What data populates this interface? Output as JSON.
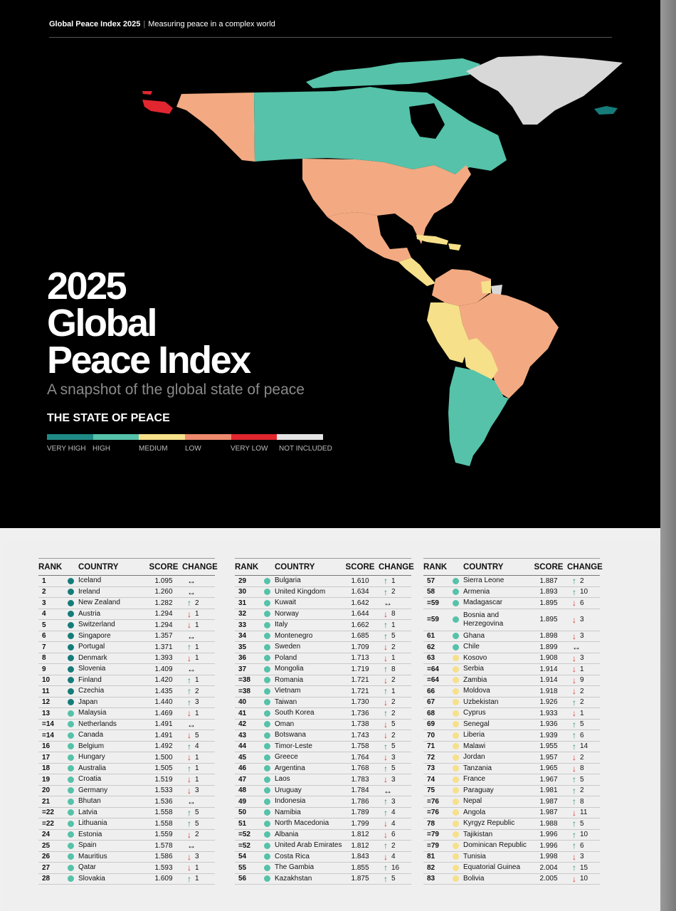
{
  "header": {
    "brand": "Global Peace Index 2025",
    "tagline": "Measuring peace in a complex world"
  },
  "title_lines": [
    "2025",
    "Global",
    "Peace Index"
  ],
  "subtitle": "A snapshot of the global state of peace",
  "state_heading": "THE STATE OF PEACE",
  "colors": {
    "very_high": "#167c7a",
    "high": "#55c2a9",
    "medium": "#f6e08a",
    "low": "#f3aa82",
    "very_low": "#e2262f",
    "not_included": "#d8d8d8"
  },
  "legend": [
    {
      "label": "VERY HIGH",
      "color": "#1f8a85"
    },
    {
      "label": "HIGH",
      "color": "#55c2a9"
    },
    {
      "label": "MEDIUM",
      "color": "#f6e08a"
    },
    {
      "label": "LOW",
      "color": "#ee8a6e"
    },
    {
      "label": "VERY LOW",
      "color": "#e2262f"
    },
    {
      "label": "NOT INCLUDED",
      "color": "#e4e4e4"
    }
  ],
  "table_headers": {
    "rank": "RANK",
    "country": "COUNTRY",
    "score": "SCORE",
    "change": "CHANGE"
  },
  "columns": [
    [
      {
        "rank": "1",
        "country": "Iceland",
        "score": "1.095",
        "dir": "same",
        "change": "",
        "level": "very_high"
      },
      {
        "rank": "2",
        "country": "Ireland",
        "score": "1.260",
        "dir": "same",
        "change": "",
        "level": "very_high"
      },
      {
        "rank": "3",
        "country": "New Zealand",
        "score": "1.282",
        "dir": "up",
        "change": "2",
        "level": "very_high"
      },
      {
        "rank": "4",
        "country": "Austria",
        "score": "1.294",
        "dir": "down",
        "change": "1",
        "level": "very_high"
      },
      {
        "rank": "5",
        "country": "Switzerland",
        "score": "1.294",
        "dir": "down",
        "change": "1",
        "level": "very_high"
      },
      {
        "rank": "6",
        "country": "Singapore",
        "score": "1.357",
        "dir": "same",
        "change": "",
        "level": "very_high"
      },
      {
        "rank": "7",
        "country": "Portugal",
        "score": "1.371",
        "dir": "up",
        "change": "1",
        "level": "very_high"
      },
      {
        "rank": "8",
        "country": "Denmark",
        "score": "1.393",
        "dir": "down",
        "change": "1",
        "level": "very_high"
      },
      {
        "rank": "9",
        "country": "Slovenia",
        "score": "1.409",
        "dir": "same",
        "change": "",
        "level": "very_high"
      },
      {
        "rank": "10",
        "country": "Finland",
        "score": "1.420",
        "dir": "up",
        "change": "1",
        "level": "very_high"
      },
      {
        "rank": "11",
        "country": "Czechia",
        "score": "1.435",
        "dir": "up",
        "change": "2",
        "level": "very_high"
      },
      {
        "rank": "12",
        "country": "Japan",
        "score": "1.440",
        "dir": "up",
        "change": "3",
        "level": "very_high"
      },
      {
        "rank": "13",
        "country": "Malaysia",
        "score": "1.469",
        "dir": "down",
        "change": "1",
        "level": "high"
      },
      {
        "rank": "=14",
        "country": "Netherlands",
        "score": "1.491",
        "dir": "same",
        "change": "",
        "level": "high"
      },
      {
        "rank": "=14",
        "country": "Canada",
        "score": "1.491",
        "dir": "down",
        "change": "5",
        "level": "high"
      },
      {
        "rank": "16",
        "country": "Belgium",
        "score": "1.492",
        "dir": "up",
        "change": "4",
        "level": "high"
      },
      {
        "rank": "17",
        "country": "Hungary",
        "score": "1.500",
        "dir": "down",
        "change": "1",
        "level": "high"
      },
      {
        "rank": "18",
        "country": "Australia",
        "score": "1.505",
        "dir": "up",
        "change": "1",
        "level": "high"
      },
      {
        "rank": "19",
        "country": "Croatia",
        "score": "1.519",
        "dir": "down",
        "change": "1",
        "level": "high"
      },
      {
        "rank": "20",
        "country": "Germany",
        "score": "1.533",
        "dir": "down",
        "change": "3",
        "level": "high"
      },
      {
        "rank": "21",
        "country": "Bhutan",
        "score": "1.536",
        "dir": "same",
        "change": "",
        "level": "high"
      },
      {
        "rank": "=22",
        "country": "Latvia",
        "score": "1.558",
        "dir": "up",
        "change": "5",
        "level": "high"
      },
      {
        "rank": "=22",
        "country": "Lithuania",
        "score": "1.558",
        "dir": "up",
        "change": "5",
        "level": "high"
      },
      {
        "rank": "24",
        "country": "Estonia",
        "score": "1.559",
        "dir": "down",
        "change": "2",
        "level": "high"
      },
      {
        "rank": "25",
        "country": "Spain",
        "score": "1.578",
        "dir": "same",
        "change": "",
        "level": "high"
      },
      {
        "rank": "26",
        "country": "Mauritius",
        "score": "1.586",
        "dir": "down",
        "change": "3",
        "level": "high"
      },
      {
        "rank": "27",
        "country": "Qatar",
        "score": "1.593",
        "dir": "down",
        "change": "1",
        "level": "high"
      },
      {
        "rank": "28",
        "country": "Slovakia",
        "score": "1.609",
        "dir": "up",
        "change": "1",
        "level": "high"
      }
    ],
    [
      {
        "rank": "29",
        "country": "Bulgaria",
        "score": "1.610",
        "dir": "up",
        "change": "1",
        "level": "high"
      },
      {
        "rank": "30",
        "country": "United Kingdom",
        "score": "1.634",
        "dir": "up",
        "change": "2",
        "level": "high"
      },
      {
        "rank": "31",
        "country": "Kuwait",
        "score": "1.642",
        "dir": "same",
        "change": "",
        "level": "high"
      },
      {
        "rank": "32",
        "country": "Norway",
        "score": "1.644",
        "dir": "down",
        "change": "8",
        "level": "high"
      },
      {
        "rank": "33",
        "country": "Italy",
        "score": "1.662",
        "dir": "up",
        "change": "1",
        "level": "high"
      },
      {
        "rank": "34",
        "country": "Montenegro",
        "score": "1.685",
        "dir": "up",
        "change": "5",
        "level": "high"
      },
      {
        "rank": "35",
        "country": "Sweden",
        "score": "1.709",
        "dir": "down",
        "change": "2",
        "level": "high"
      },
      {
        "rank": "36",
        "country": "Poland",
        "score": "1.713",
        "dir": "down",
        "change": "1",
        "level": "high"
      },
      {
        "rank": "37",
        "country": "Mongolia",
        "score": "1.719",
        "dir": "up",
        "change": "8",
        "level": "high"
      },
      {
        "rank": "=38",
        "country": "Romania",
        "score": "1.721",
        "dir": "down",
        "change": "2",
        "level": "high"
      },
      {
        "rank": "=38",
        "country": "Vietnam",
        "score": "1.721",
        "dir": "up",
        "change": "1",
        "level": "high"
      },
      {
        "rank": "40",
        "country": "Taiwan",
        "score": "1.730",
        "dir": "down",
        "change": "2",
        "level": "high"
      },
      {
        "rank": "41",
        "country": "South Korea",
        "score": "1.736",
        "dir": "up",
        "change": "2",
        "level": "high"
      },
      {
        "rank": "42",
        "country": "Oman",
        "score": "1.738",
        "dir": "down",
        "change": "5",
        "level": "high"
      },
      {
        "rank": "43",
        "country": "Botswana",
        "score": "1.743",
        "dir": "down",
        "change": "2",
        "level": "high"
      },
      {
        "rank": "44",
        "country": "Timor-Leste",
        "score": "1.758",
        "dir": "up",
        "change": "5",
        "level": "high"
      },
      {
        "rank": "45",
        "country": "Greece",
        "score": "1.764",
        "dir": "down",
        "change": "3",
        "level": "high"
      },
      {
        "rank": "46",
        "country": "Argentina",
        "score": "1.768",
        "dir": "up",
        "change": "5",
        "level": "high"
      },
      {
        "rank": "47",
        "country": "Laos",
        "score": "1.783",
        "dir": "down",
        "change": "3",
        "level": "high"
      },
      {
        "rank": "48",
        "country": "Uruguay",
        "score": "1.784",
        "dir": "same",
        "change": "",
        "level": "high"
      },
      {
        "rank": "49",
        "country": "Indonesia",
        "score": "1.786",
        "dir": "up",
        "change": "3",
        "level": "high"
      },
      {
        "rank": "50",
        "country": "Namibia",
        "score": "1.789",
        "dir": "up",
        "change": "4",
        "level": "high"
      },
      {
        "rank": "51",
        "country": "North Macedonia",
        "score": "1.799",
        "dir": "down",
        "change": "4",
        "level": "high"
      },
      {
        "rank": "=52",
        "country": "Albania",
        "score": "1.812",
        "dir": "down",
        "change": "6",
        "level": "high"
      },
      {
        "rank": "=52",
        "country": "United Arab Emirates",
        "score": "1.812",
        "dir": "up",
        "change": "2",
        "level": "high"
      },
      {
        "rank": "54",
        "country": "Costa Rica",
        "score": "1.843",
        "dir": "down",
        "change": "4",
        "level": "high"
      },
      {
        "rank": "55",
        "country": "The Gambia",
        "score": "1.855",
        "dir": "up",
        "change": "16",
        "level": "high"
      },
      {
        "rank": "56",
        "country": "Kazakhstan",
        "score": "1.875",
        "dir": "up",
        "change": "5",
        "level": "high"
      }
    ],
    [
      {
        "rank": "57",
        "country": "Sierra Leone",
        "score": "1.887",
        "dir": "up",
        "change": "2",
        "level": "high"
      },
      {
        "rank": "58",
        "country": "Armenia",
        "score": "1.893",
        "dir": "up",
        "change": "10",
        "level": "high"
      },
      {
        "rank": "=59",
        "country": "Madagascar",
        "score": "1.895",
        "dir": "down",
        "change": "6",
        "level": "high"
      },
      {
        "rank": "=59",
        "country": "Bosnia and Herzegovina",
        "score": "1.895",
        "dir": "down",
        "change": "3",
        "level": "high",
        "tall": true
      },
      {
        "rank": "61",
        "country": "Ghana",
        "score": "1.898",
        "dir": "down",
        "change": "3",
        "level": "high"
      },
      {
        "rank": "62",
        "country": "Chile",
        "score": "1.899",
        "dir": "same",
        "change": "",
        "level": "high"
      },
      {
        "rank": "63",
        "country": "Kosovo",
        "score": "1.908",
        "dir": "down",
        "change": "3",
        "level": "medium"
      },
      {
        "rank": "=64",
        "country": "Serbia",
        "score": "1.914",
        "dir": "down",
        "change": "1",
        "level": "medium"
      },
      {
        "rank": "=64",
        "country": "Zambia",
        "score": "1.914",
        "dir": "down",
        "change": "9",
        "level": "medium"
      },
      {
        "rank": "66",
        "country": "Moldova",
        "score": "1.918",
        "dir": "down",
        "change": "2",
        "level": "medium"
      },
      {
        "rank": "67",
        "country": "Uzbekistan",
        "score": "1.926",
        "dir": "up",
        "change": "2",
        "level": "medium"
      },
      {
        "rank": "68",
        "country": "Cyprus",
        "score": "1.933",
        "dir": "down",
        "change": "1",
        "level": "medium"
      },
      {
        "rank": "69",
        "country": "Senegal",
        "score": "1.936",
        "dir": "up",
        "change": "5",
        "level": "medium"
      },
      {
        "rank": "70",
        "country": "Liberia",
        "score": "1.939",
        "dir": "up",
        "change": "6",
        "level": "medium"
      },
      {
        "rank": "71",
        "country": "Malawi",
        "score": "1.955",
        "dir": "up",
        "change": "14",
        "level": "medium"
      },
      {
        "rank": "72",
        "country": "Jordan",
        "score": "1.957",
        "dir": "down",
        "change": "2",
        "level": "medium"
      },
      {
        "rank": "73",
        "country": "Tanzania",
        "score": "1.965",
        "dir": "down",
        "change": "8",
        "level": "medium"
      },
      {
        "rank": "74",
        "country": "France",
        "score": "1.967",
        "dir": "up",
        "change": "5",
        "level": "medium"
      },
      {
        "rank": "75",
        "country": "Paraguay",
        "score": "1.981",
        "dir": "up",
        "change": "2",
        "level": "medium"
      },
      {
        "rank": "=76",
        "country": "Nepal",
        "score": "1.987",
        "dir": "up",
        "change": "8",
        "level": "medium"
      },
      {
        "rank": "=76",
        "country": "Angola",
        "score": "1.987",
        "dir": "down",
        "change": "11",
        "level": "medium"
      },
      {
        "rank": "78",
        "country": "Kyrgyz Republic",
        "score": "1.988",
        "dir": "up",
        "change": "5",
        "level": "medium"
      },
      {
        "rank": "=79",
        "country": "Tajikistan",
        "score": "1.996",
        "dir": "up",
        "change": "10",
        "level": "medium"
      },
      {
        "rank": "=79",
        "country": "Dominican Republic",
        "score": "1.996",
        "dir": "up",
        "change": "6",
        "level": "medium"
      },
      {
        "rank": "81",
        "country": "Tunisia",
        "score": "1.998",
        "dir": "down",
        "change": "3",
        "level": "medium"
      },
      {
        "rank": "82",
        "country": "Equatorial Guinea",
        "score": "2.004",
        "dir": "up",
        "change": "15",
        "level": "medium"
      },
      {
        "rank": "83",
        "country": "Bolivia",
        "score": "2.005",
        "dir": "down",
        "change": "10",
        "level": "medium"
      }
    ]
  ]
}
